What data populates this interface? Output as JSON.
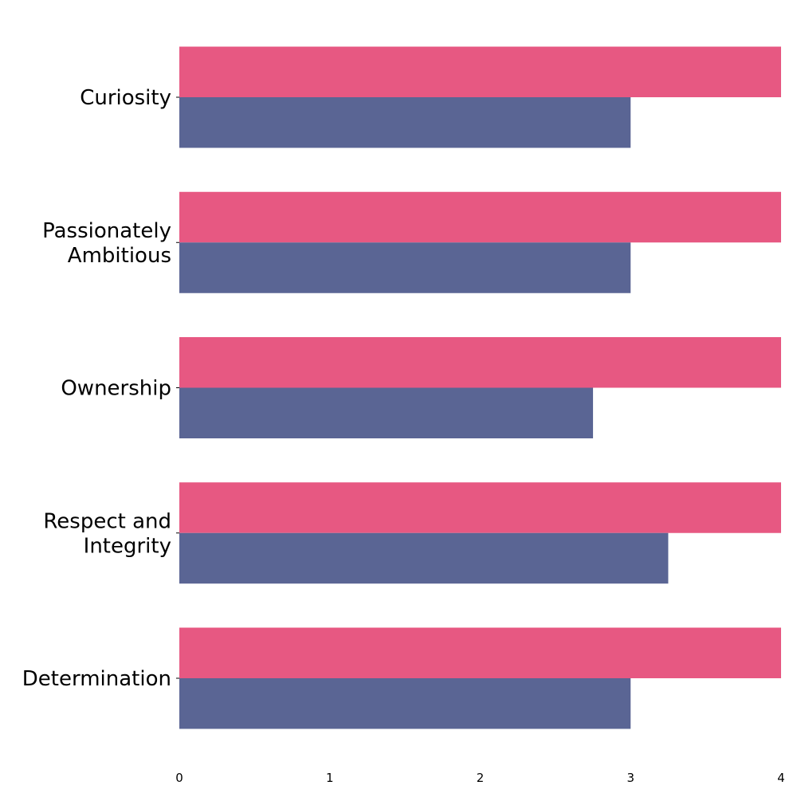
{
  "chart_data": {
    "type": "bar",
    "orientation": "horizontal",
    "categories": [
      [
        "Curiosity"
      ],
      [
        "Passionately",
        "Ambitious"
      ],
      [
        "Ownership"
      ],
      [
        "Respect and",
        "Integrity"
      ],
      [
        "Determination"
      ]
    ],
    "series": [
      {
        "color": "#e75882",
        "values": [
          4,
          4,
          4,
          4,
          4
        ]
      },
      {
        "color": "#5a6594",
        "values": [
          3,
          3,
          2.75,
          3.25,
          3
        ]
      }
    ],
    "xticks": [
      "0",
      "1",
      "2",
      "3",
      "4"
    ],
    "xlim": [
      0,
      4
    ],
    "grid": false,
    "legend": false
  }
}
